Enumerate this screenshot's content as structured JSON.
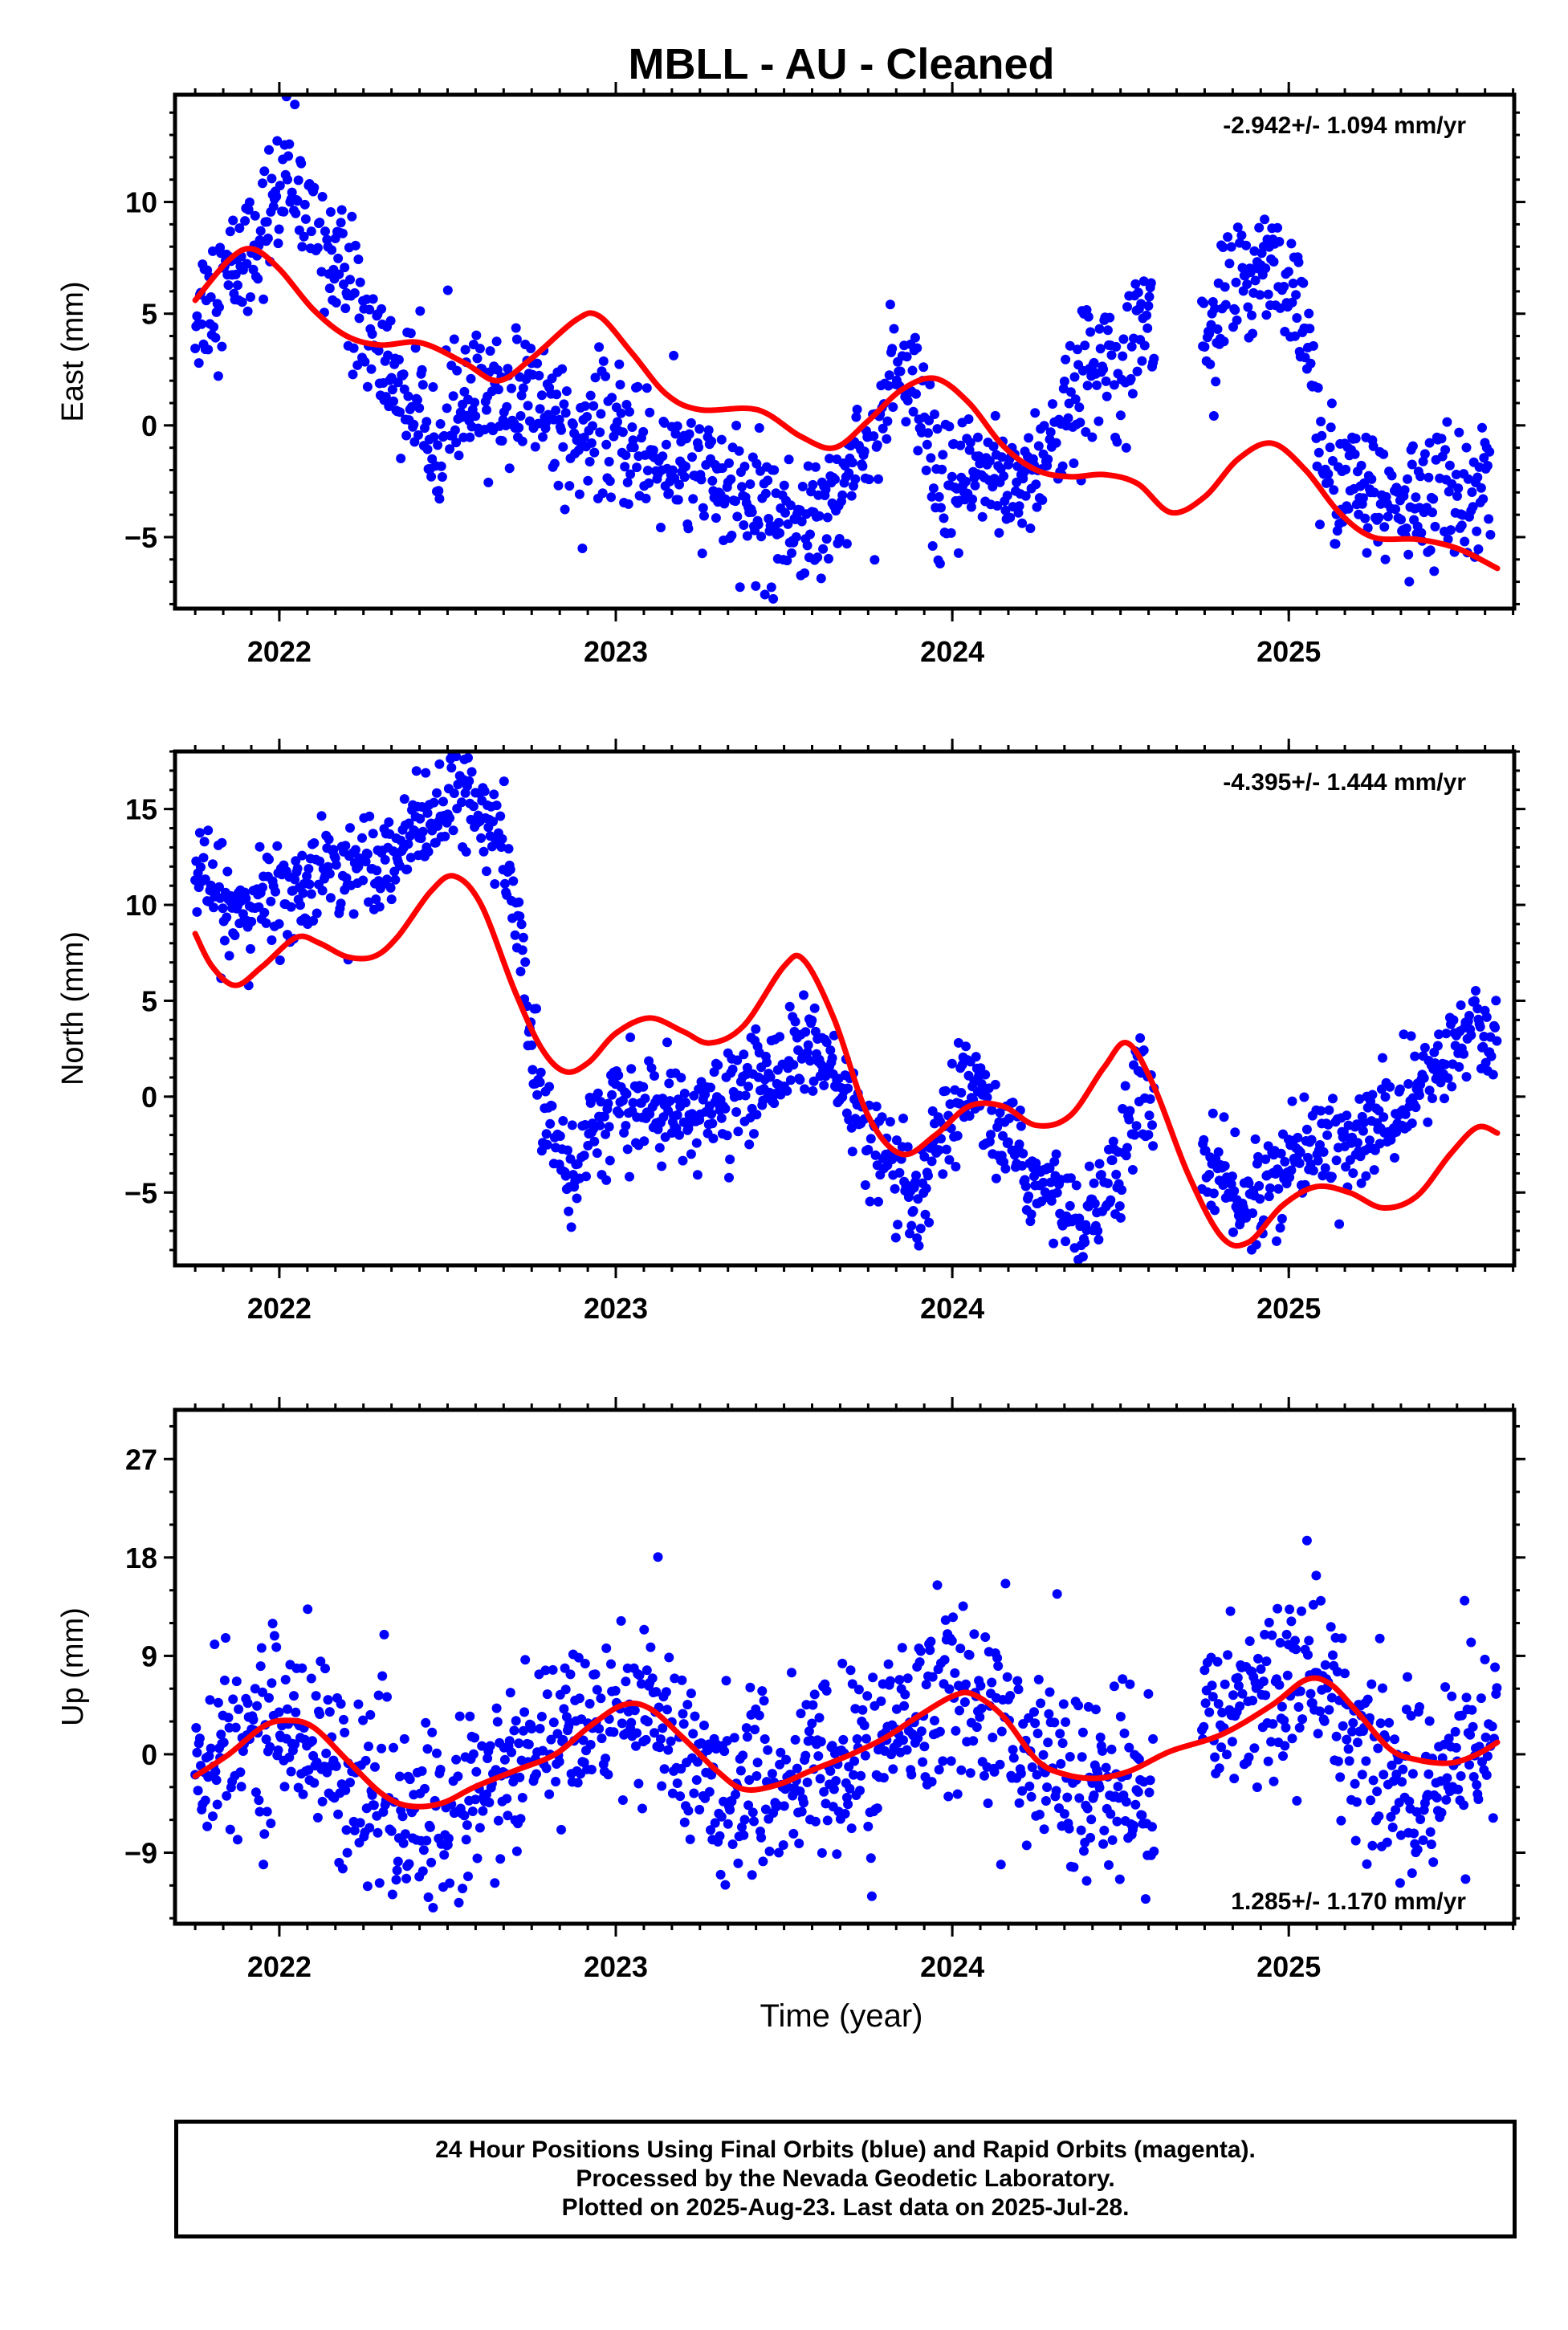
{
  "title": "MBLL  - AU - Cleaned",
  "xlabel": "Time (year)",
  "footer": {
    "line1": "24 Hour Positions Using Final Orbits (blue) and Rapid Orbits (magenta).",
    "line2": "Processed by the Nevada Geodetic Laboratory.",
    "line3": "Plotted on 2025-Aug-23. Last data on 2025-Jul-28."
  },
  "colors": {
    "data": "#0000ff",
    "fit": "#ff0000"
  },
  "chart_data": [
    {
      "type": "scatter",
      "component": "east",
      "ylabel": "East (mm)",
      "rate_label": "-2.942+/- 1.094 mm/yr",
      "xlim": [
        2021.69,
        2025.67
      ],
      "ylim": [
        -8.2,
        14.8
      ],
      "yticks": [
        -5,
        0,
        5,
        10
      ],
      "xticks": [
        2022,
        2023,
        2024,
        2025
      ],
      "x_tick_labels": [
        "2022",
        "2023",
        "2024",
        "2025"
      ],
      "data_trend": [
        [
          2021.75,
          5
        ],
        [
          2021.9,
          7.5
        ],
        [
          2022.02,
          11
        ],
        [
          2022.15,
          8
        ],
        [
          2022.3,
          3
        ],
        [
          2022.45,
          0
        ],
        [
          2022.6,
          1
        ],
        [
          2022.75,
          1.5
        ],
        [
          2022.9,
          -0.5
        ],
        [
          2023.0,
          -0.5
        ],
        [
          2023.2,
          -2
        ],
        [
          2023.4,
          -3.5
        ],
        [
          2023.55,
          -4.5
        ],
        [
          2023.7,
          -2
        ],
        [
          2023.82,
          1.5
        ],
        [
          2023.88,
          2
        ],
        [
          2023.96,
          -3.5
        ],
        [
          2024.1,
          -2
        ],
        [
          2024.2,
          -2.5
        ],
        [
          2024.3,
          -1
        ],
        [
          2024.4,
          2.5
        ],
        [
          2024.55,
          4.5
        ],
        [
          2024.6,
          4.5
        ],
        [
          2024.75,
          4
        ],
        [
          2024.85,
          6
        ],
        [
          2024.95,
          8
        ],
        [
          2025.05,
          4
        ],
        [
          2025.1,
          -2
        ],
        [
          2025.3,
          -3.5
        ],
        [
          2025.5,
          -3
        ],
        [
          2025.6,
          -2.5
        ]
      ],
      "data_scatter": 1.5,
      "gaps": [
        [
          2024.6,
          2024.74
        ]
      ],
      "fit_line": [
        [
          2021.75,
          5.6
        ],
        [
          2021.85,
          7.4
        ],
        [
          2021.92,
          7.9
        ],
        [
          2022.0,
          7.0
        ],
        [
          2022.1,
          5.2
        ],
        [
          2022.2,
          4.0
        ],
        [
          2022.3,
          3.6
        ],
        [
          2022.42,
          3.7
        ],
        [
          2022.55,
          2.8
        ],
        [
          2022.65,
          2.0
        ],
        [
          2022.75,
          3.0
        ],
        [
          2022.88,
          4.7
        ],
        [
          2022.95,
          4.9
        ],
        [
          2023.05,
          3.2
        ],
        [
          2023.15,
          1.4
        ],
        [
          2023.25,
          0.7
        ],
        [
          2023.42,
          0.7
        ],
        [
          2023.55,
          -0.5
        ],
        [
          2023.65,
          -1.0
        ],
        [
          2023.75,
          0.2
        ],
        [
          2023.85,
          1.6
        ],
        [
          2023.95,
          2.1
        ],
        [
          2024.05,
          1.0
        ],
        [
          2024.15,
          -0.9
        ],
        [
          2024.25,
          -2.0
        ],
        [
          2024.35,
          -2.3
        ],
        [
          2024.45,
          -2.2
        ],
        [
          2024.55,
          -2.6
        ],
        [
          2024.65,
          -3.9
        ],
        [
          2024.75,
          -3.2
        ],
        [
          2024.85,
          -1.5
        ],
        [
          2024.95,
          -0.8
        ],
        [
          2025.05,
          -2.0
        ],
        [
          2025.15,
          -3.9
        ],
        [
          2025.25,
          -5.0
        ],
        [
          2025.38,
          -5.1
        ],
        [
          2025.5,
          -5.5
        ],
        [
          2025.62,
          -6.4
        ]
      ]
    },
    {
      "type": "scatter",
      "component": "north",
      "ylabel": "North (mm)",
      "rate_label": "-4.395+/- 1.444 mm/yr",
      "xlim": [
        2021.69,
        2025.67
      ],
      "ylim": [
        -8.8,
        18.0
      ],
      "yticks": [
        -5,
        0,
        5,
        10,
        15
      ],
      "xticks": [
        2022,
        2023,
        2024,
        2025
      ],
      "x_tick_labels": [
        "2022",
        "2023",
        "2024",
        "2025"
      ],
      "data_trend": [
        [
          2021.75,
          12
        ],
        [
          2021.85,
          9.5
        ],
        [
          2022.0,
          10.5
        ],
        [
          2022.2,
          12
        ],
        [
          2022.35,
          13
        ],
        [
          2022.55,
          16
        ],
        [
          2022.65,
          13.5
        ],
        [
          2022.72,
          8
        ],
        [
          2022.75,
          2
        ],
        [
          2022.82,
          -2
        ],
        [
          2022.88,
          -4
        ],
        [
          2022.95,
          -1
        ],
        [
          2023.1,
          -0.5
        ],
        [
          2023.2,
          -1.5
        ],
        [
          2023.3,
          -0.5
        ],
        [
          2023.45,
          1
        ],
        [
          2023.55,
          3
        ],
        [
          2023.65,
          1
        ],
        [
          2023.75,
          -2
        ],
        [
          2023.82,
          -4
        ],
        [
          2023.9,
          -6
        ],
        [
          2023.95,
          -3
        ],
        [
          2024.05,
          0.5
        ],
        [
          2024.15,
          -2
        ],
        [
          2024.25,
          -4.5
        ],
        [
          2024.35,
          -6
        ],
        [
          2024.45,
          -5.5
        ],
        [
          2024.5,
          -4
        ],
        [
          2024.55,
          1
        ],
        [
          2024.6,
          -1
        ],
        [
          2024.75,
          -3
        ],
        [
          2024.82,
          -5
        ],
        [
          2024.9,
          -5.5
        ],
        [
          2025.0,
          -3.5
        ],
        [
          2025.1,
          -2
        ],
        [
          2025.2,
          -2.5
        ],
        [
          2025.3,
          -1
        ],
        [
          2025.45,
          1.5
        ],
        [
          2025.55,
          3.5
        ],
        [
          2025.62,
          3
        ]
      ],
      "data_scatter": 1.3,
      "gaps": [
        [
          2024.6,
          2024.74
        ]
      ],
      "fit_line": [
        [
          2021.75,
          8.5
        ],
        [
          2021.8,
          6.8
        ],
        [
          2021.87,
          5.8
        ],
        [
          2021.95,
          6.8
        ],
        [
          2022.05,
          8.3
        ],
        [
          2022.12,
          8.0
        ],
        [
          2022.2,
          7.3
        ],
        [
          2022.28,
          7.3
        ],
        [
          2022.35,
          8.3
        ],
        [
          2022.45,
          10.7
        ],
        [
          2022.52,
          11.5
        ],
        [
          2022.6,
          10.0
        ],
        [
          2022.7,
          5.5
        ],
        [
          2022.78,
          2.5
        ],
        [
          2022.85,
          1.3
        ],
        [
          2022.92,
          1.8
        ],
        [
          2023.0,
          3.3
        ],
        [
          2023.1,
          4.1
        ],
        [
          2023.2,
          3.4
        ],
        [
          2023.28,
          2.8
        ],
        [
          2023.38,
          3.7
        ],
        [
          2023.5,
          6.8
        ],
        [
          2023.56,
          7.1
        ],
        [
          2023.65,
          4.0
        ],
        [
          2023.75,
          -1.0
        ],
        [
          2023.85,
          -3.0
        ],
        [
          2023.95,
          -2.0
        ],
        [
          2024.05,
          -0.5
        ],
        [
          2024.15,
          -0.5
        ],
        [
          2024.25,
          -1.5
        ],
        [
          2024.35,
          -1.0
        ],
        [
          2024.45,
          1.5
        ],
        [
          2024.52,
          2.8
        ],
        [
          2024.6,
          0.5
        ],
        [
          2024.7,
          -4.0
        ],
        [
          2024.8,
          -7.3
        ],
        [
          2024.88,
          -7.6
        ],
        [
          2024.98,
          -5.7
        ],
        [
          2025.08,
          -4.7
        ],
        [
          2025.18,
          -5.0
        ],
        [
          2025.28,
          -5.8
        ],
        [
          2025.38,
          -5.2
        ],
        [
          2025.48,
          -3.0
        ],
        [
          2025.56,
          -1.6
        ],
        [
          2025.62,
          -1.9
        ]
      ]
    },
    {
      "type": "scatter",
      "component": "up",
      "ylabel": "Up (mm)",
      "rate_label": "1.285+/- 1.170 mm/yr",
      "xlim": [
        2021.69,
        2025.67
      ],
      "ylim": [
        -15.5,
        31.5
      ],
      "yticks": [
        -9,
        0,
        9,
        18,
        27
      ],
      "xticks": [
        2022,
        2023,
        2024,
        2025
      ],
      "x_tick_labels": [
        "2022",
        "2023",
        "2024",
        "2025"
      ],
      "data_trend": [
        [
          2021.75,
          -1.5
        ],
        [
          2021.9,
          1.5
        ],
        [
          2022.0,
          3.5
        ],
        [
          2022.1,
          1.5
        ],
        [
          2022.2,
          -2.5
        ],
        [
          2022.3,
          -5
        ],
        [
          2022.4,
          -6
        ],
        [
          2022.5,
          -5.5
        ],
        [
          2022.6,
          -3.5
        ],
        [
          2022.7,
          -1.5
        ],
        [
          2022.8,
          0.5
        ],
        [
          2022.9,
          2.5
        ],
        [
          2023.0,
          5
        ],
        [
          2023.1,
          4
        ],
        [
          2023.2,
          0
        ],
        [
          2023.3,
          -3
        ],
        [
          2023.4,
          -4
        ],
        [
          2023.5,
          -2.5
        ],
        [
          2023.6,
          -1.5
        ],
        [
          2023.7,
          -1
        ],
        [
          2023.8,
          0.5
        ],
        [
          2023.9,
          4
        ],
        [
          2024.0,
          7
        ],
        [
          2024.1,
          4
        ],
        [
          2024.2,
          1
        ],
        [
          2024.3,
          -1
        ],
        [
          2024.4,
          -3
        ],
        [
          2024.5,
          -4
        ],
        [
          2024.6,
          -3
        ],
        [
          2024.75,
          2
        ],
        [
          2024.85,
          5
        ],
        [
          2024.95,
          7
        ],
        [
          2025.05,
          8
        ],
        [
          2025.15,
          4
        ],
        [
          2025.25,
          0
        ],
        [
          2025.35,
          -4
        ],
        [
          2025.45,
          -2
        ],
        [
          2025.55,
          1
        ],
        [
          2025.62,
          3
        ]
      ],
      "data_scatter": 4.2,
      "gaps": [
        [
          2024.6,
          2024.74
        ]
      ],
      "fit_line": [
        [
          2021.75,
          -2.0
        ],
        [
          2021.85,
          0.0
        ],
        [
          2021.95,
          2.5
        ],
        [
          2022.02,
          3.1
        ],
        [
          2022.1,
          2.5
        ],
        [
          2022.2,
          -0.5
        ],
        [
          2022.3,
          -3.5
        ],
        [
          2022.38,
          -4.7
        ],
        [
          2022.48,
          -4.5
        ],
        [
          2022.58,
          -3.0
        ],
        [
          2022.7,
          -1.5
        ],
        [
          2022.82,
          0.0
        ],
        [
          2022.92,
          2.5
        ],
        [
          2023.02,
          4.5
        ],
        [
          2023.1,
          4.2
        ],
        [
          2023.2,
          1.5
        ],
        [
          2023.3,
          -1.5
        ],
        [
          2023.38,
          -3.2
        ],
        [
          2023.48,
          -2.8
        ],
        [
          2023.58,
          -1.5
        ],
        [
          2023.7,
          0.0
        ],
        [
          2023.8,
          1.5
        ],
        [
          2023.9,
          3.5
        ],
        [
          2024.0,
          5.3
        ],
        [
          2024.06,
          5.5
        ],
        [
          2024.15,
          3.5
        ],
        [
          2024.25,
          -0.5
        ],
        [
          2024.33,
          -1.8
        ],
        [
          2024.43,
          -2.2
        ],
        [
          2024.53,
          -1.5
        ],
        [
          2024.65,
          0.3
        ],
        [
          2024.8,
          1.8
        ],
        [
          2024.95,
          4.5
        ],
        [
          2025.05,
          6.8
        ],
        [
          2025.12,
          6.5
        ],
        [
          2025.2,
          4.0
        ],
        [
          2025.3,
          0.5
        ],
        [
          2025.38,
          -0.5
        ],
        [
          2025.48,
          -0.8
        ],
        [
          2025.56,
          0.0
        ],
        [
          2025.62,
          1.1
        ]
      ]
    }
  ]
}
